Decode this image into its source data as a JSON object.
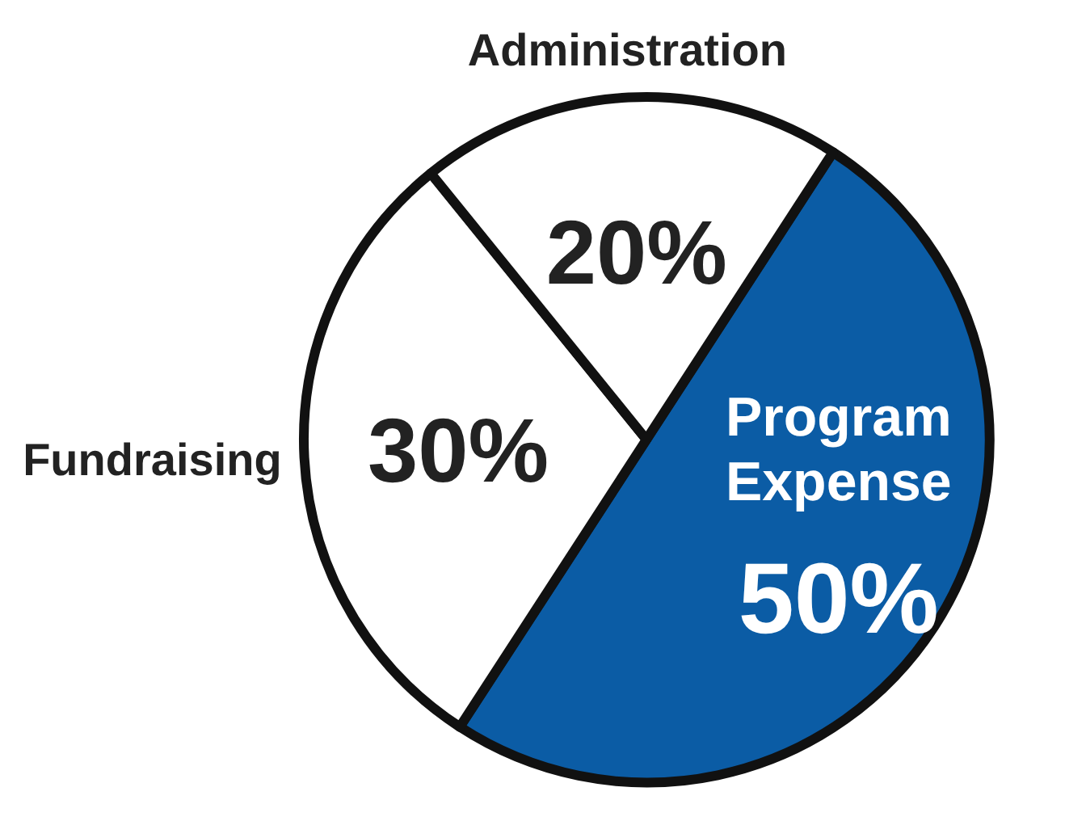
{
  "chart_data": {
    "type": "pie",
    "categories": [
      "Program Expense",
      "Fundraising",
      "Administration"
    ],
    "values": [
      50,
      30,
      20
    ],
    "colors": [
      "#0b5ca5",
      "#ffffff",
      "#ffffff"
    ],
    "value_labels": [
      "50%",
      "30%",
      "20%"
    ]
  }
}
